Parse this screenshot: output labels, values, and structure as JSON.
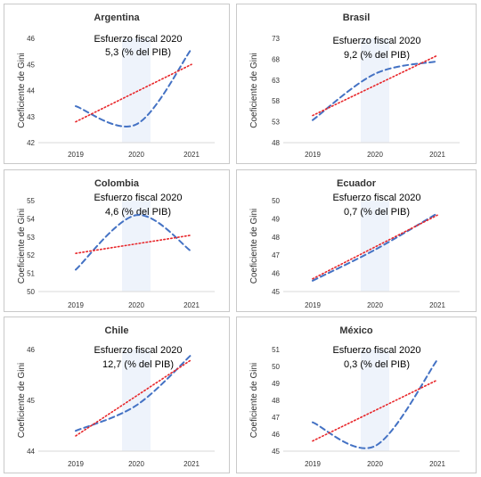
{
  "chart_data": [
    {
      "type": "line",
      "title": "Argentina",
      "annotation": [
        "Esfuerzo fiscal 2020",
        "5,3 (% del PIB)"
      ],
      "ylabel": "Coeficiente de Gini",
      "x": [
        "2019",
        "2020",
        "2021"
      ],
      "yticks": [
        "42",
        "43",
        "44",
        "45",
        "46"
      ],
      "ylim": [
        42,
        46
      ],
      "series": [
        {
          "style": "dashed",
          "color": "#4472c4",
          "values": [
            43.4,
            42.7,
            45.6
          ]
        },
        {
          "style": "dotted-trend",
          "color": "#e8262a",
          "values": [
            42.8,
            44.0,
            45.0
          ]
        }
      ]
    },
    {
      "type": "line",
      "title": "Brasil",
      "annotation": [
        "Esfuerzo fiscal 2020",
        "9,2 (% del PIB)"
      ],
      "ylabel": "Coeficiente de Gini",
      "x": [
        "2019",
        "2020",
        "2021"
      ],
      "yticks": [
        "48",
        "53",
        "58",
        "63",
        "68",
        "73"
      ],
      "ylim": [
        48,
        73
      ],
      "series": [
        {
          "style": "dashed",
          "color": "#4472c4",
          "values": [
            53.4,
            64.5,
            67.5
          ]
        },
        {
          "style": "dotted-trend",
          "color": "#e8262a",
          "values": [
            54.5,
            61.7,
            68.9
          ]
        }
      ]
    },
    {
      "type": "line",
      "title": "Colombia",
      "annotation": [
        "Esfuerzo fiscal 2020",
        "4,6 (% del PIB)"
      ],
      "ylabel": "Coeficiente de Gini",
      "x": [
        "2019",
        "2020",
        "2021"
      ],
      "yticks": [
        "50",
        "51",
        "52",
        "53",
        "54",
        "55"
      ],
      "ylim": [
        50,
        55
      ],
      "series": [
        {
          "style": "dashed",
          "color": "#4472c4",
          "values": [
            51.2,
            54.2,
            52.2
          ]
        },
        {
          "style": "dotted-trend",
          "color": "#e8262a",
          "values": [
            52.1,
            52.6,
            53.1
          ]
        }
      ]
    },
    {
      "type": "line",
      "title": "Ecuador",
      "annotation": [
        "Esfuerzo fiscal 2020",
        "0,7 (% del PIB)"
      ],
      "ylabel": "Coeficiente de Gini",
      "x": [
        "2019",
        "2020",
        "2021"
      ],
      "yticks": [
        "45",
        "46",
        "47",
        "48",
        "49",
        "50"
      ],
      "ylim": [
        45,
        50
      ],
      "series": [
        {
          "style": "dashed",
          "color": "#4472c4",
          "values": [
            45.6,
            47.3,
            49.3
          ]
        },
        {
          "style": "dotted-trend",
          "color": "#e8262a",
          "values": [
            45.7,
            47.4,
            49.2
          ]
        }
      ]
    },
    {
      "type": "line",
      "title": "Chile",
      "annotation": [
        "Esfuerzo fiscal 2020",
        "12,7 (% del PIB)"
      ],
      "ylabel": "Coeficiente de Gini",
      "x": [
        "2019",
        "2020",
        "2021"
      ],
      "yticks": [
        "44",
        "45",
        "46"
      ],
      "ylim": [
        44,
        46
      ],
      "series": [
        {
          "style": "dashed",
          "color": "#4472c4",
          "values": [
            44.4,
            44.9,
            45.9
          ]
        },
        {
          "style": "dotted-trend",
          "color": "#e8262a",
          "values": [
            44.3,
            45.05,
            45.8
          ]
        }
      ]
    },
    {
      "type": "line",
      "title": "México",
      "annotation": [
        "Esfuerzo fiscal 2020",
        "0,3 (% del PIB)"
      ],
      "ylabel": "Coeficiente de Gini",
      "x": [
        "2019",
        "2020",
        "2021"
      ],
      "yticks": [
        "45",
        "46",
        "47",
        "48",
        "49",
        "50",
        "51"
      ],
      "ylim": [
        45,
        51
      ],
      "series": [
        {
          "style": "dashed",
          "color": "#4472c4",
          "values": [
            46.7,
            45.3,
            50.4
          ]
        },
        {
          "style": "dotted-trend",
          "color": "#e8262a",
          "values": [
            45.6,
            47.4,
            49.2
          ]
        }
      ]
    }
  ],
  "highlight_color": "#eef3fb"
}
